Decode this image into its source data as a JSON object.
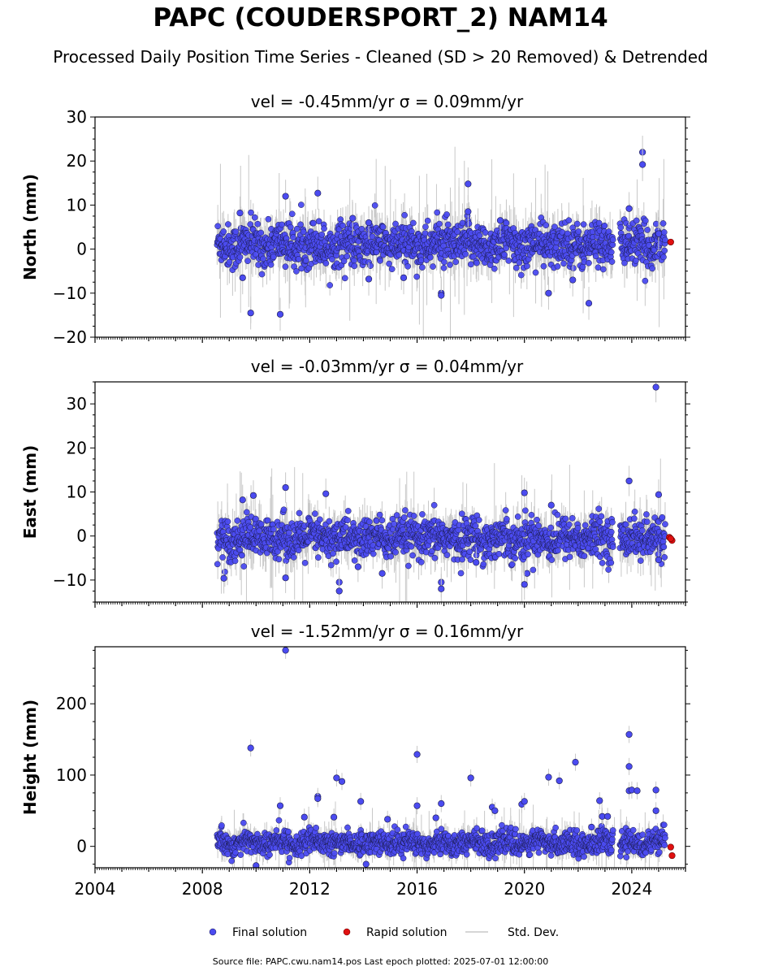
{
  "page": {
    "title": "PAPC (COUDERSPORT_2) NAM14",
    "subtitle": "Processed Daily Position Time Series - Cleaned (SD > 20 Removed) & Detrended",
    "footer": "Source file: PAPC.cwu.nam14.pos  Last epoch plotted: 2025-07-01 12:00:00"
  },
  "colors": {
    "final": "#4b4bf0",
    "rapid": "#e01010",
    "stddev": "#c8c8c8",
    "edge": "#1a1a4a"
  },
  "chart_data": [
    {
      "type": "scatter",
      "panel_title": "vel = -0.45mm/yr   σ = 0.09mm/yr",
      "ylabel": "North (mm)",
      "ylim": [
        -20,
        30
      ],
      "yticks": [
        -20,
        -10,
        0,
        10,
        20,
        30
      ],
      "ytick_labels": [
        "−20",
        "−10",
        "0",
        "10",
        "20",
        "30"
      ],
      "xlim": [
        2004,
        2026
      ],
      "xtick_labels": [],
      "band": {
        "start": 2008.55,
        "end": 2025.25,
        "y_center": 1.0,
        "spread": 3.0,
        "noise_sd": 2.5
      },
      "series": [
        {
          "name": "Final solution",
          "marker": "circle",
          "x": [
            2009.8,
            2010.9,
            2011.1,
            2012.3,
            2009.4,
            2013.6,
            2017.9,
            2014.2,
            2016.9,
            2016.9,
            2020.9,
            2022.4,
            2024.4,
            2024.4,
            2017.9,
            2009.5,
            2014.2,
            2015.5,
            2019.1,
            2021.8,
            2023.9,
            2025.0
          ],
          "y": [
            -14.5,
            -14.8,
            12.0,
            12.7,
            8.2,
            7.0,
            14.8,
            -6.8,
            -10.0,
            -10.5,
            -10.0,
            -12.3,
            22.0,
            19.2,
            8.5,
            -6.5,
            6.0,
            -6.5,
            6.5,
            -7.0,
            9.2,
            3.5
          ]
        },
        {
          "name": "Rapid solution",
          "marker": "circle",
          "x": [
            2025.45
          ],
          "y": [
            1.6
          ]
        }
      ]
    },
    {
      "type": "scatter",
      "panel_title": "vel = -0.03mm/yr   σ = 0.04mm/yr",
      "ylabel": "East (mm)",
      "ylim": [
        -15,
        35
      ],
      "yticks": [
        -10,
        0,
        10,
        20,
        30
      ],
      "ytick_labels": [
        "−10",
        "0",
        "10",
        "20",
        "30"
      ],
      "xlim": [
        2004,
        2026
      ],
      "xtick_labels": [],
      "band": {
        "start": 2008.55,
        "end": 2025.25,
        "y_center": -0.5,
        "spread": 2.5,
        "noise_sd": 2.3
      },
      "series": [
        {
          "name": "Final solution",
          "marker": "circle",
          "x": [
            2024.9,
            2011.1,
            2012.6,
            2008.8,
            2011.1,
            2013.1,
            2013.1,
            2016.9,
            2016.9,
            2020.0,
            2020.1,
            2020.0,
            2023.9,
            2009.5,
            2009.9,
            2014.7,
            2021.0,
            2025.0,
            2018.2,
            2013.8,
            2025.0
          ],
          "y": [
            33.8,
            11.0,
            9.6,
            -9.6,
            -9.5,
            -10.5,
            -12.5,
            -10.5,
            -12.0,
            9.8,
            -8.5,
            -11.0,
            12.5,
            8.2,
            9.2,
            -8.5,
            7.0,
            9.4,
            -6.0,
            -7.0,
            -5.4
          ]
        },
        {
          "name": "Rapid solution",
          "marker": "circle",
          "x": [
            2025.4,
            2025.5,
            2025.45
          ],
          "y": [
            -0.3,
            -1.0,
            -0.6
          ]
        }
      ]
    },
    {
      "type": "scatter",
      "panel_title": "vel = -1.52mm/yr   σ = 0.16mm/yr",
      "ylabel": "Height (mm)",
      "ylim": [
        -30,
        280
      ],
      "yticks": [
        0,
        100,
        200
      ],
      "ytick_labels": [
        "0",
        "100",
        "200"
      ],
      "xlim": [
        2004,
        2026
      ],
      "xticks": [
        2004,
        2008,
        2012,
        2016,
        2020,
        2024
      ],
      "xtick_labels": [
        "2004",
        "2008",
        "2012",
        "2016",
        "2020",
        "2024"
      ],
      "band": {
        "start": 2008.55,
        "end": 2025.25,
        "y_center": 5,
        "spread": 12,
        "noise_sd": 8
      },
      "series": [
        {
          "name": "Final solution",
          "marker": "circle",
          "x": [
            2011.1,
            2009.8,
            2016.0,
            2018.0,
            2019.9,
            2020.0,
            2020.9,
            2021.3,
            2021.9,
            2023.9,
            2023.9,
            2023.9,
            2012.3,
            2012.3,
            2013.0,
            2013.2,
            2013.9,
            2014.1,
            2010.9,
            2011.8,
            2012.9,
            2014.9,
            2016.0,
            2016.7,
            2016.9,
            2018.8,
            2018.9,
            2022.8,
            2022.9,
            2023.1,
            2024.0,
            2024.2,
            2024.9,
            2024.9,
            2010.0,
            2022.5
          ],
          "y": [
            275,
            138,
            129,
            96,
            59,
            63,
            97,
            92,
            118,
            157,
            112,
            78,
            70,
            67,
            96,
            91,
            63,
            -25,
            57,
            41,
            41,
            38,
            57,
            40,
            60,
            55,
            50,
            64,
            42,
            42,
            79,
            78,
            79,
            50,
            -27,
            27
          ]
        },
        {
          "name": "Rapid solution",
          "marker": "circle",
          "x": [
            2025.45,
            2025.5
          ],
          "y": [
            -1,
            -13
          ]
        }
      ]
    }
  ],
  "legend": {
    "placement": "bottom-center",
    "items": [
      {
        "label": "Final solution",
        "kind": "dot",
        "color": "#4b4bf0"
      },
      {
        "label": "Rapid solution",
        "kind": "dot",
        "color": "#e01010"
      },
      {
        "label": "Std. Dev.",
        "kind": "line",
        "color": "#c8c8c8"
      }
    ]
  }
}
